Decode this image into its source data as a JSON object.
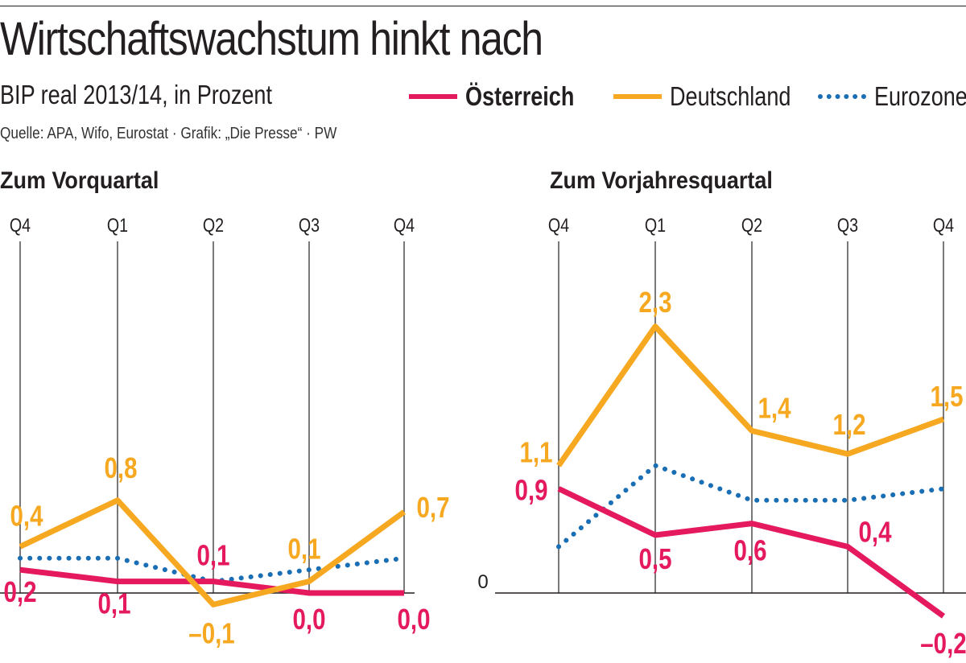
{
  "header": {
    "title": "Wirtschaftswachstum hinkt nach",
    "subtitle": "BIP real 2013/14, in Prozent",
    "source": "Quelle: APA, Wifo, Eurostat · Grafik: „Die Presse“ · PW"
  },
  "legend": {
    "items": [
      {
        "label": "Österreich",
        "color": "#e5195e",
        "style": "solid",
        "bold": true
      },
      {
        "label": "Deutschland",
        "color": "#f6a821",
        "style": "solid",
        "bold": false
      },
      {
        "label": "Eurozone",
        "color": "#1a6eb4",
        "style": "dotted",
        "bold": false
      }
    ]
  },
  "chart_data": [
    {
      "type": "line",
      "title": "Zum Vorquartal",
      "categories": [
        "Q4",
        "Q1",
        "Q2",
        "Q3",
        "Q4"
      ],
      "zero_label": "",
      "ylim": [
        -0.2,
        1.6
      ],
      "series": [
        {
          "name": "Österreich",
          "color": "#e5195e",
          "style": "solid",
          "values": [
            0.2,
            0.1,
            0.1,
            0.0,
            0.0
          ],
          "labels": [
            "0,2",
            "0,1",
            "0,1",
            "0,0",
            "0,0"
          ]
        },
        {
          "name": "Deutschland",
          "color": "#f6a821",
          "style": "solid",
          "values": [
            0.4,
            0.8,
            -0.1,
            0.1,
            0.7
          ],
          "labels": [
            "0,4",
            "0,8",
            "–0,1",
            "0,1",
            "0,7"
          ]
        },
        {
          "name": "Eurozone",
          "color": "#1a6eb4",
          "style": "dotted",
          "values": [
            0.3,
            0.3,
            0.1,
            0.2,
            0.3
          ],
          "labels": []
        }
      ]
    },
    {
      "type": "line",
      "title": "Zum Vorjahresquartal",
      "categories": [
        "Q4",
        "Q1",
        "Q2",
        "Q3",
        "Q4"
      ],
      "zero_label": "0",
      "ylim": [
        -0.4,
        2.8
      ],
      "series": [
        {
          "name": "Österreich",
          "color": "#e5195e",
          "style": "solid",
          "values": [
            0.9,
            0.5,
            0.6,
            0.4,
            -0.2
          ],
          "labels": [
            "0,9",
            "0,5",
            "0,6",
            "0,4",
            "–0,2"
          ]
        },
        {
          "name": "Deutschland",
          "color": "#f6a821",
          "style": "solid",
          "values": [
            1.1,
            2.3,
            1.4,
            1.2,
            1.5
          ],
          "labels": [
            "1,1",
            "2,3",
            "1,4",
            "1,2",
            "1,5"
          ]
        },
        {
          "name": "Eurozone",
          "color": "#1a6eb4",
          "style": "dotted",
          "values": [
            0.4,
            1.1,
            0.8,
            0.8,
            0.9
          ],
          "labels": []
        }
      ]
    }
  ]
}
